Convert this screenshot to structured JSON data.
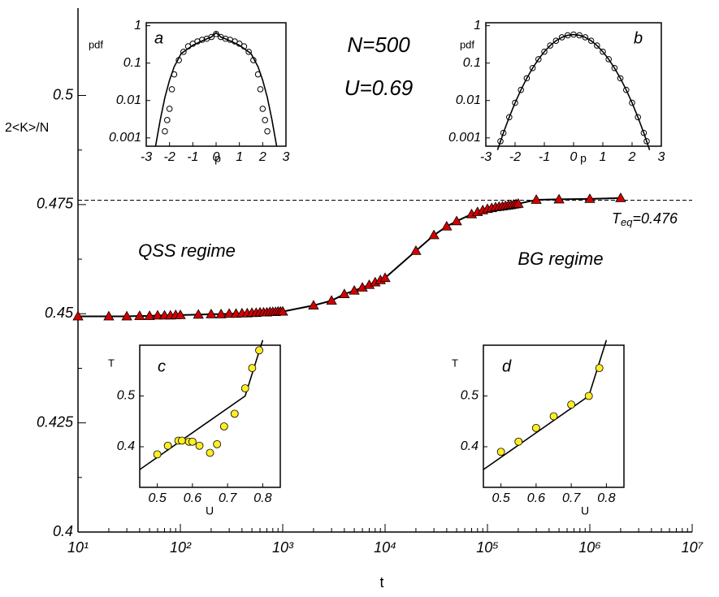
{
  "chart_data": [
    {
      "type": "scatter",
      "xscale": "log",
      "xlabel": "t",
      "ylabel": "2<K>/N",
      "xlim": [
        10,
        10000000
      ],
      "ylim": [
        0.4,
        0.52
      ],
      "xticks": [
        {
          "value": 10,
          "label": "10¹"
        },
        {
          "value": 100,
          "label": "10²"
        },
        {
          "value": 1000,
          "label": "10³"
        },
        {
          "value": 10000,
          "label": "10⁴"
        },
        {
          "value": 100000,
          "label": "10⁵"
        },
        {
          "value": 1000000,
          "label": "10⁶"
        },
        {
          "value": 10000000,
          "label": "10⁷"
        }
      ],
      "yticks": [
        0.4,
        0.425,
        0.45,
        0.475,
        0.5
      ],
      "marker": "triangle",
      "connect": true,
      "series": [
        {
          "color": "#d40000",
          "x": [
            10,
            20,
            30,
            40,
            50,
            60,
            70,
            80,
            90,
            100,
            150,
            200,
            250,
            300,
            350,
            400,
            450,
            500,
            550,
            600,
            650,
            700,
            750,
            800,
            850,
            900,
            950,
            1000,
            2000,
            3000,
            4000,
            5000,
            6000,
            7000,
            8000,
            9000,
            10000,
            20000,
            30000,
            40000,
            50000,
            70000,
            80000,
            90000,
            100000,
            110000,
            120000,
            130000,
            140000,
            150000,
            160000,
            170000,
            180000,
            190000,
            200000,
            300000,
            500000,
            1000000,
            2000000
          ],
          "values": [
            0.4494,
            0.4494,
            0.4494,
            0.4495,
            0.4495,
            0.4496,
            0.4496,
            0.4496,
            0.4497,
            0.4497,
            0.4498,
            0.4499,
            0.4499,
            0.45,
            0.45,
            0.4501,
            0.4501,
            0.4502,
            0.4502,
            0.4503,
            0.4503,
            0.4503,
            0.4504,
            0.4504,
            0.4504,
            0.4505,
            0.4505,
            0.4505,
            0.4519,
            0.453,
            0.4545,
            0.4553,
            0.456,
            0.4566,
            0.4572,
            0.4577,
            0.4582,
            0.4644,
            0.468,
            0.47,
            0.4712,
            0.4728,
            0.4733,
            0.4737,
            0.474,
            0.4742,
            0.4744,
            0.4745,
            0.4746,
            0.4747,
            0.4748,
            0.4749,
            0.475,
            0.4751,
            0.4752,
            0.4761,
            0.4762,
            0.4763,
            0.4765
          ]
        }
      ],
      "hline": 0.476,
      "hline_style": "dashed",
      "hline_label": {
        "symbol": "T",
        "sub": "eq",
        "rest": "=0.476"
      },
      "annotations": [
        "N=500",
        "U=0.69",
        "QSS regime",
        "BG regime"
      ]
    },
    {
      "type": "scatter",
      "yscale": "log",
      "title": "a",
      "xlabel": "p",
      "ylabel": "pdf",
      "xlim": [
        -3,
        3
      ],
      "ylim": [
        0.0006,
        1.2
      ],
      "xticks": [
        -3,
        -2,
        -1,
        0,
        1,
        2,
        3
      ],
      "yticks": [
        1,
        0.1,
        0.01,
        0.001
      ],
      "marker": "open-circle",
      "x": [
        -2.2,
        -2.1,
        -2,
        -1.9,
        -1.8,
        -1.6,
        -1.4,
        -1.2,
        -1,
        -0.8,
        -0.6,
        -0.4,
        -0.2,
        0,
        0.2,
        0.4,
        0.6,
        0.8,
        1,
        1.2,
        1.4,
        1.6,
        1.8,
        1.9,
        2,
        2.1,
        2.2
      ],
      "values": [
        0.0015,
        0.003,
        0.006,
        0.02,
        0.05,
        0.12,
        0.2,
        0.28,
        0.33,
        0.38,
        0.42,
        0.45,
        0.5,
        0.6,
        0.5,
        0.45,
        0.42,
        0.38,
        0.33,
        0.28,
        0.2,
        0.12,
        0.05,
        0.02,
        0.006,
        0.003,
        0.0015
      ],
      "line_x": [
        -2.6,
        -2.4,
        -2.2,
        -2,
        -1.8,
        -1.5,
        -1,
        -0.5,
        -0.2,
        0,
        0.2,
        0.5,
        1,
        1.5,
        1.8,
        2,
        2.2,
        2.4,
        2.6
      ],
      "line_values": [
        0.0006,
        0.003,
        0.012,
        0.035,
        0.08,
        0.18,
        0.3,
        0.42,
        0.5,
        0.65,
        0.5,
        0.42,
        0.3,
        0.18,
        0.08,
        0.035,
        0.012,
        0.003,
        0.0006
      ]
    },
    {
      "type": "scatter",
      "yscale": "log",
      "title": "b",
      "xlabel": "p",
      "ylabel": "pdf",
      "xlim": [
        -3,
        3
      ],
      "ylim": [
        0.0006,
        1.2
      ],
      "xticks": [
        -3,
        -2,
        -1,
        0,
        1,
        2,
        3
      ],
      "yticks": [
        1,
        0.1,
        0.01,
        0.001
      ],
      "marker": "open-circle",
      "x": [
        -2.5,
        -2.4,
        -2.2,
        -2,
        -1.8,
        -1.6,
        -1.4,
        -1.2,
        -1,
        -0.8,
        -0.6,
        -0.4,
        -0.2,
        0,
        0.2,
        0.4,
        0.6,
        0.8,
        1,
        1.2,
        1.4,
        1.6,
        1.8,
        2,
        2.2,
        2.4,
        2.5
      ],
      "values": [
        0.000815,
        0.00136,
        0.00358,
        0.00867,
        0.0192,
        0.0393,
        0.0738,
        0.127,
        0.202,
        0.295,
        0.396,
        0.489,
        0.554,
        0.578,
        0.554,
        0.489,
        0.396,
        0.295,
        0.202,
        0.127,
        0.0738,
        0.0393,
        0.0192,
        0.00867,
        0.00358,
        0.00136,
        0.000815
      ],
      "line_x": [
        -2.6,
        -2.4,
        -2.2,
        -2,
        -1.8,
        -1.6,
        -1.4,
        -1.2,
        -1,
        -0.8,
        -0.6,
        -0.4,
        -0.2,
        0,
        0.2,
        0.4,
        0.6,
        0.8,
        1,
        1.2,
        1.4,
        1.6,
        1.8,
        2,
        2.2,
        2.4,
        2.6
      ],
      "line_values": [
        0.000477,
        0.00136,
        0.00358,
        0.00867,
        0.0192,
        0.0393,
        0.0738,
        0.127,
        0.202,
        0.295,
        0.396,
        0.489,
        0.554,
        0.578,
        0.554,
        0.489,
        0.396,
        0.295,
        0.202,
        0.127,
        0.0738,
        0.0393,
        0.0192,
        0.00867,
        0.00358,
        0.00136,
        0.000477
      ]
    },
    {
      "type": "scatter",
      "title": "c",
      "xlabel": "U",
      "ylabel": "T",
      "xlim": [
        0.45,
        0.85
      ],
      "ylim": [
        0.32,
        0.6
      ],
      "xticks": [
        0.5,
        0.6,
        0.7,
        0.8
      ],
      "yticks": [
        0.4,
        0.5
      ],
      "marker": "filled-circle",
      "color": "#ffee22",
      "x": [
        0.5,
        0.53,
        0.56,
        0.57,
        0.59,
        0.6,
        0.62,
        0.65,
        0.67,
        0.69,
        0.72,
        0.75,
        0.77,
        0.79
      ],
      "values": [
        0.385,
        0.402,
        0.412,
        0.412,
        0.41,
        0.41,
        0.402,
        0.388,
        0.405,
        0.44,
        0.465,
        0.515,
        0.555,
        0.59
      ],
      "line_x": [
        0.45,
        0.75,
        0.8
      ],
      "line_values": [
        0.355,
        0.5,
        0.61
      ]
    },
    {
      "type": "scatter",
      "title": "d",
      "xlabel": "U",
      "ylabel": "T",
      "xlim": [
        0.45,
        0.85
      ],
      "ylim": [
        0.32,
        0.6
      ],
      "xticks": [
        0.5,
        0.6,
        0.7,
        0.8
      ],
      "yticks": [
        0.4,
        0.5
      ],
      "marker": "filled-circle",
      "color": "#ffee22",
      "x": [
        0.5,
        0.55,
        0.6,
        0.65,
        0.7,
        0.75,
        0.78
      ],
      "values": [
        0.39,
        0.41,
        0.437,
        0.46,
        0.483,
        0.5,
        0.555
      ],
      "line_x": [
        0.45,
        0.75,
        0.8
      ],
      "line_values": [
        0.355,
        0.5,
        0.61
      ]
    }
  ]
}
